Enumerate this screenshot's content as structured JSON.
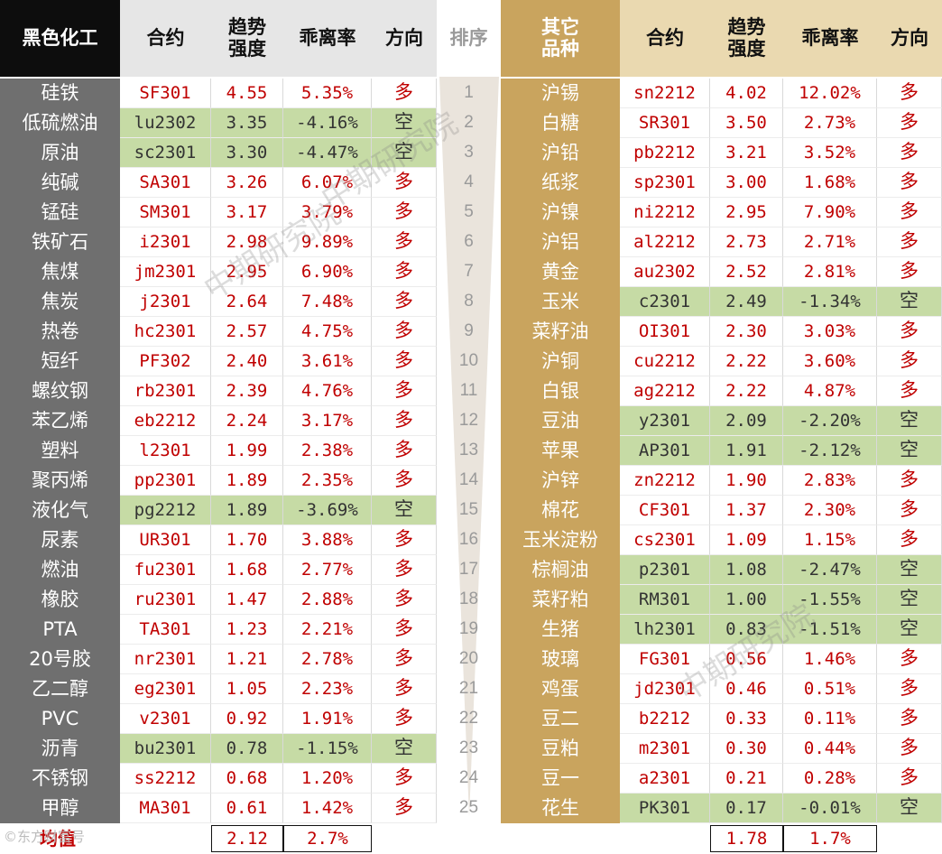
{
  "headers": {
    "left": [
      "黑色化工",
      "合约",
      "趋势\n强度",
      "乖离率",
      "方向"
    ],
    "rank": "排序",
    "right": [
      "其它\n品种",
      "合约",
      "趋势\n强度",
      "乖离率",
      "方向"
    ]
  },
  "ranks": [
    "1",
    "2",
    "3",
    "4",
    "5",
    "6",
    "7",
    "8",
    "9",
    "10",
    "11",
    "12",
    "13",
    "14",
    "15",
    "16",
    "17",
    "18",
    "19",
    "20",
    "21",
    "22",
    "23",
    "24",
    "25"
  ],
  "left_rows": [
    {
      "name": "硅铁",
      "contract": "SF301",
      "strength": "4.55",
      "deviation": "5.35%",
      "direction": "多"
    },
    {
      "name": "低硫燃油",
      "contract": "lu2302",
      "strength": "3.35",
      "deviation": "-4.16%",
      "direction": "空"
    },
    {
      "name": "原油",
      "contract": "sc2301",
      "strength": "3.30",
      "deviation": "-4.47%",
      "direction": "空"
    },
    {
      "name": "纯碱",
      "contract": "SA301",
      "strength": "3.26",
      "deviation": "6.07%",
      "direction": "多"
    },
    {
      "name": "锰硅",
      "contract": "SM301",
      "strength": "3.17",
      "deviation": "3.79%",
      "direction": "多"
    },
    {
      "name": "铁矿石",
      "contract": "i2301",
      "strength": "2.98",
      "deviation": "9.89%",
      "direction": "多"
    },
    {
      "name": "焦煤",
      "contract": "jm2301",
      "strength": "2.95",
      "deviation": "6.90%",
      "direction": "多"
    },
    {
      "name": "焦炭",
      "contract": "j2301",
      "strength": "2.64",
      "deviation": "7.48%",
      "direction": "多"
    },
    {
      "name": "热卷",
      "contract": "hc2301",
      "strength": "2.57",
      "deviation": "4.75%",
      "direction": "多"
    },
    {
      "name": "短纤",
      "contract": "PF302",
      "strength": "2.40",
      "deviation": "3.61%",
      "direction": "多"
    },
    {
      "name": "螺纹钢",
      "contract": "rb2301",
      "strength": "2.39",
      "deviation": "4.76%",
      "direction": "多"
    },
    {
      "name": "苯乙烯",
      "contract": "eb2212",
      "strength": "2.24",
      "deviation": "3.17%",
      "direction": "多"
    },
    {
      "name": "塑料",
      "contract": "l2301",
      "strength": "1.99",
      "deviation": "2.38%",
      "direction": "多"
    },
    {
      "name": "聚丙烯",
      "contract": "pp2301",
      "strength": "1.89",
      "deviation": "2.35%",
      "direction": "多"
    },
    {
      "name": "液化气",
      "contract": "pg2212",
      "strength": "1.89",
      "deviation": "-3.69%",
      "direction": "空"
    },
    {
      "name": "尿素",
      "contract": "UR301",
      "strength": "1.70",
      "deviation": "3.88%",
      "direction": "多"
    },
    {
      "name": "燃油",
      "contract": "fu2301",
      "strength": "1.68",
      "deviation": "2.77%",
      "direction": "多"
    },
    {
      "name": "橡胶",
      "contract": "ru2301",
      "strength": "1.47",
      "deviation": "2.88%",
      "direction": "多"
    },
    {
      "name": "PTA",
      "contract": "TA301",
      "strength": "1.23",
      "deviation": "2.21%",
      "direction": "多"
    },
    {
      "name": "20号胶",
      "contract": "nr2301",
      "strength": "1.21",
      "deviation": "2.78%",
      "direction": "多"
    },
    {
      "name": "乙二醇",
      "contract": "eg2301",
      "strength": "1.05",
      "deviation": "2.23%",
      "direction": "多"
    },
    {
      "name": "PVC",
      "contract": "v2301",
      "strength": "0.92",
      "deviation": "1.91%",
      "direction": "多"
    },
    {
      "name": "沥青",
      "contract": "bu2301",
      "strength": "0.78",
      "deviation": "-1.15%",
      "direction": "空"
    },
    {
      "name": "不锈钢",
      "contract": "ss2212",
      "strength": "0.68",
      "deviation": "1.20%",
      "direction": "多"
    },
    {
      "name": "甲醇",
      "contract": "MA301",
      "strength": "0.61",
      "deviation": "1.42%",
      "direction": "多"
    }
  ],
  "right_rows": [
    {
      "name": "沪锡",
      "contract": "sn2212",
      "strength": "4.02",
      "deviation": "12.02%",
      "direction": "多"
    },
    {
      "name": "白糖",
      "contract": "SR301",
      "strength": "3.50",
      "deviation": "2.73%",
      "direction": "多"
    },
    {
      "name": "沪铅",
      "contract": "pb2212",
      "strength": "3.21",
      "deviation": "3.52%",
      "direction": "多"
    },
    {
      "name": "纸浆",
      "contract": "sp2301",
      "strength": "3.00",
      "deviation": "1.68%",
      "direction": "多"
    },
    {
      "name": "沪镍",
      "contract": "ni2212",
      "strength": "2.95",
      "deviation": "7.90%",
      "direction": "多"
    },
    {
      "name": "沪铝",
      "contract": "al2212",
      "strength": "2.73",
      "deviation": "2.71%",
      "direction": "多"
    },
    {
      "name": "黄金",
      "contract": "au2302",
      "strength": "2.52",
      "deviation": "2.81%",
      "direction": "多"
    },
    {
      "name": "玉米",
      "contract": "c2301",
      "strength": "2.49",
      "deviation": "-1.34%",
      "direction": "空"
    },
    {
      "name": "菜籽油",
      "contract": "OI301",
      "strength": "2.30",
      "deviation": "3.03%",
      "direction": "多"
    },
    {
      "name": "沪铜",
      "contract": "cu2212",
      "strength": "2.22",
      "deviation": "3.60%",
      "direction": "多"
    },
    {
      "name": "白银",
      "contract": "ag2212",
      "strength": "2.22",
      "deviation": "4.87%",
      "direction": "多"
    },
    {
      "name": "豆油",
      "contract": "y2301",
      "strength": "2.09",
      "deviation": "-2.20%",
      "direction": "空"
    },
    {
      "name": "苹果",
      "contract": "AP301",
      "strength": "1.91",
      "deviation": "-2.12%",
      "direction": "空"
    },
    {
      "name": "沪锌",
      "contract": "zn2212",
      "strength": "1.90",
      "deviation": "2.83%",
      "direction": "多"
    },
    {
      "name": "棉花",
      "contract": "CF301",
      "strength": "1.37",
      "deviation": "2.30%",
      "direction": "多"
    },
    {
      "name": "玉米淀粉",
      "contract": "cs2301",
      "strength": "1.09",
      "deviation": "1.15%",
      "direction": "多"
    },
    {
      "name": "棕榈油",
      "contract": "p2301",
      "strength": "1.08",
      "deviation": "-2.47%",
      "direction": "空"
    },
    {
      "name": "菜籽粕",
      "contract": "RM301",
      "strength": "1.00",
      "deviation": "-1.55%",
      "direction": "空"
    },
    {
      "name": "生猪",
      "contract": "lh2301",
      "strength": "0.83",
      "deviation": "-1.51%",
      "direction": "空"
    },
    {
      "name": "玻璃",
      "contract": "FG301",
      "strength": "0.56",
      "deviation": "1.46%",
      "direction": "多"
    },
    {
      "name": "鸡蛋",
      "contract": "jd2301",
      "strength": "0.46",
      "deviation": "0.51%",
      "direction": "多"
    },
    {
      "name": "豆二",
      "contract": "b2212",
      "strength": "0.33",
      "deviation": "0.11%",
      "direction": "多"
    },
    {
      "name": "豆粕",
      "contract": "m2301",
      "strength": "0.30",
      "deviation": "0.44%",
      "direction": "多"
    },
    {
      "name": "豆一",
      "contract": "a2301",
      "strength": "0.21",
      "deviation": "0.28%",
      "direction": "多"
    },
    {
      "name": "花生",
      "contract": "PK301",
      "strength": "0.17",
      "deviation": "-0.01%",
      "direction": "空"
    }
  ],
  "average": {
    "label": "均值",
    "left_strength": "2.12",
    "left_deviation": "2.7%",
    "right_strength": "1.78",
    "right_deviation": "1.7%"
  },
  "watermarks": [
    "中期研究院",
    "中期研究院",
    "中期研究院"
  ],
  "corner_logo": "©东方财富号",
  "colors": {
    "long_text": "#c00000",
    "short_background": "#c6dba5",
    "left_name_background": "#6f6f6f",
    "right_name_background": "#c9a45e"
  }
}
